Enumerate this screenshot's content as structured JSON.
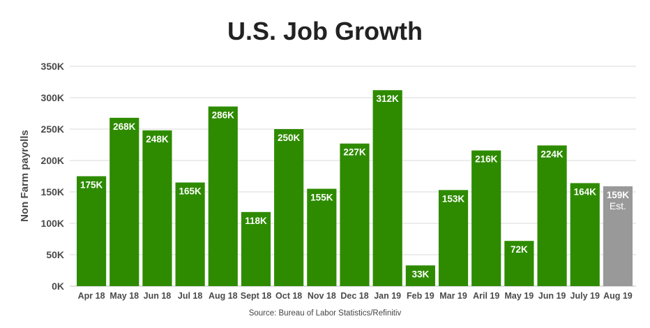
{
  "chart_data": {
    "type": "bar",
    "title": "U.S. Job Growth",
    "ylabel": "Non Farm payrolls",
    "xlabel": "",
    "source": "Source: Bureau of Labor Statistics/Refinitiv",
    "ylim": [
      0,
      350000
    ],
    "yticks": [
      {
        "value": 0,
        "label": "0K"
      },
      {
        "value": 50000,
        "label": "50K"
      },
      {
        "value": 100000,
        "label": "100K"
      },
      {
        "value": 150000,
        "label": "150K"
      },
      {
        "value": 200000,
        "label": "200K"
      },
      {
        "value": 250000,
        "label": "250K"
      },
      {
        "value": 300000,
        "label": "300K"
      },
      {
        "value": 350000,
        "label": "350K"
      }
    ],
    "grid": true,
    "colors": {
      "actual": "#2e8b00",
      "estimate": "#999999",
      "grid": "#d9d9d9",
      "text": "#4a4a4a",
      "title": "#222222"
    },
    "categories": [
      "Apr 18",
      "May 18",
      "Jun 18",
      "Jul 18",
      "Aug 18",
      "Sept 18",
      "Oct 18",
      "Nov 18",
      "Dec 18",
      "Jan 19",
      "Feb 19",
      "Mar 19",
      "Aril 19",
      "May 19",
      "Jun 19",
      "July 19",
      "Aug 19"
    ],
    "values": [
      175000,
      268000,
      248000,
      165000,
      286000,
      118000,
      250000,
      155000,
      227000,
      312000,
      33000,
      153000,
      216000,
      72000,
      224000,
      164000,
      159000
    ],
    "labels": [
      "175K",
      "268K",
      "248K",
      "165K",
      "286K",
      "118K",
      "250K",
      "155K",
      "227K",
      "312K",
      "33K",
      "153K",
      "216K",
      "72K",
      "224K",
      "164K",
      "159K"
    ],
    "estimate_index": 16,
    "estimate_note": "Est."
  }
}
